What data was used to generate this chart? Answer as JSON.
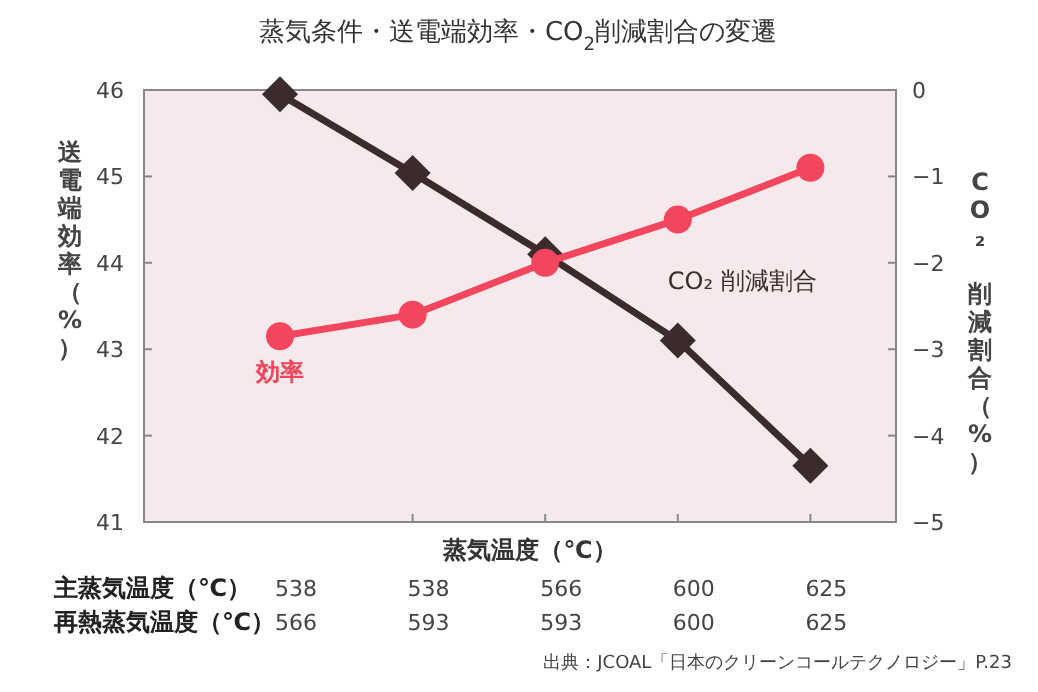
{
  "chart_data": {
    "type": "line",
    "title": "蒸気条件・送電端効率・CO$_{2}$削減割合の変遷",
    "xlabel": "蒸気温度（℃）",
    "ylabel": "送電端効率（%）",
    "y2label": "CO₂ 削減割合（%）",
    "categories": [
      "538",
      "538",
      "566",
      "600",
      "625"
    ],
    "series": [
      {
        "name": "効率",
        "color": "#f2455e",
        "marker": "circle",
        "values": [
          43.15,
          43.4,
          44.0,
          44.5,
          45.1
        ]
      },
      {
        "name": "CO₂ 削減割合",
        "color": "#3b2b2b",
        "marker": "diamond",
        "axis": "y2",
        "values": [
          -0.05,
          -0.96,
          -1.9,
          -2.9,
          -4.35
        ]
      }
    ],
    "ylim": [
      41,
      46
    ],
    "yticks": [
      41,
      42,
      43,
      44,
      45,
      46
    ],
    "y2lim": [
      -5,
      0
    ],
    "y2ticks": [
      {
        "value": -5,
        "label": "−5"
      },
      {
        "value": -4,
        "label": "−4"
      },
      {
        "value": -3,
        "label": "−3"
      },
      {
        "value": -2,
        "label": "−2"
      },
      {
        "value": -1,
        "label": "−1"
      },
      0
    ],
    "legend": false,
    "annotations": [
      "主蒸気温度（℃）",
      "再熱蒸気温度（℃）",
      "566",
      "593",
      "593",
      "600",
      "625",
      "出典：JCOAL「日本のクリーンコールテクノロジー」P.23"
    ]
  }
}
